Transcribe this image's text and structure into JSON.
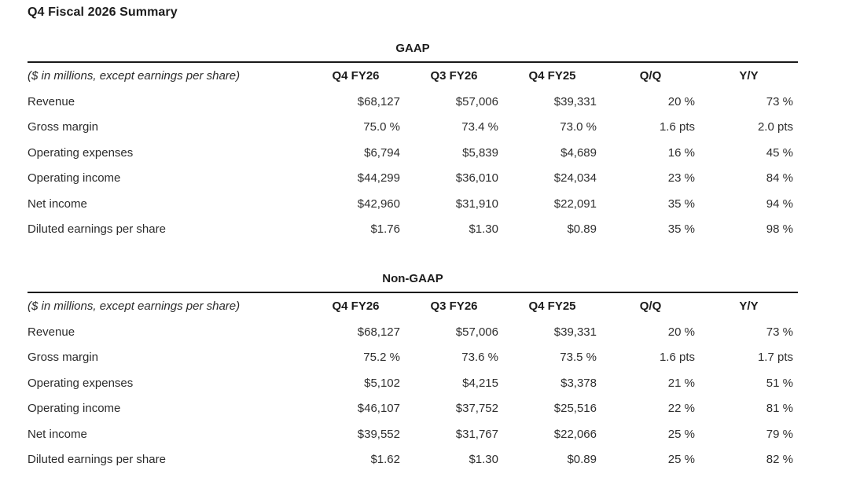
{
  "page": {
    "title": "Q4 Fiscal 2026 Summary",
    "units_note": "($ in millions, except earnings per share)"
  },
  "columns": [
    "Q4 FY26",
    "Q3 FY26",
    "Q4 FY25",
    "Q/Q",
    "Y/Y"
  ],
  "sections": [
    {
      "title": "GAAP",
      "rows": [
        {
          "label": "Revenue",
          "values": [
            "$68,127",
            "$57,006",
            "$39,331",
            "20 %",
            "73 %"
          ]
        },
        {
          "label": "Gross margin",
          "values": [
            "75.0 %",
            "73.4 %",
            "73.0 %",
            "1.6 pts",
            "2.0 pts"
          ]
        },
        {
          "label": "Operating expenses",
          "values": [
            "$6,794",
            "$5,839",
            "$4,689",
            "16 %",
            "45 %"
          ]
        },
        {
          "label": "Operating income",
          "values": [
            "$44,299",
            "$36,010",
            "$24,034",
            "23 %",
            "84 %"
          ]
        },
        {
          "label": "Net income",
          "values": [
            "$42,960",
            "$31,910",
            "$22,091",
            "35 %",
            "94 %"
          ]
        },
        {
          "label": "Diluted earnings per share",
          "values": [
            "$1.76",
            "$1.30",
            "$0.89",
            "35 %",
            "98 %"
          ]
        }
      ]
    },
    {
      "title": "Non-GAAP",
      "rows": [
        {
          "label": "Revenue",
          "values": [
            "$68,127",
            "$57,006",
            "$39,331",
            "20 %",
            "73 %"
          ]
        },
        {
          "label": "Gross margin",
          "values": [
            "75.2 %",
            "73.6 %",
            "73.5 %",
            "1.6 pts",
            "1.7 pts"
          ]
        },
        {
          "label": "Operating expenses",
          "values": [
            "$5,102",
            "$4,215",
            "$3,378",
            "21 %",
            "51 %"
          ]
        },
        {
          "label": "Operating income",
          "values": [
            "$46,107",
            "$37,752",
            "$25,516",
            "22 %",
            "81 %"
          ]
        },
        {
          "label": "Net income",
          "values": [
            "$39,552",
            "$31,767",
            "$22,066",
            "25 %",
            "79 %"
          ]
        },
        {
          "label": "Diluted earnings per share",
          "values": [
            "$1.62",
            "$1.30",
            "$0.89",
            "25 %",
            "82 %"
          ]
        }
      ]
    }
  ],
  "colors": {
    "text": "#2b2b2b",
    "heading": "#1c1c1c",
    "rule": "#1a1a1a",
    "background": "#ffffff"
  }
}
